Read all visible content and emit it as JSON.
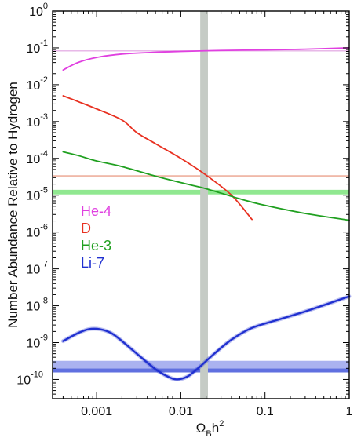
{
  "chart_data": {
    "type": "line",
    "title": "",
    "xlabel": {
      "base": "Ω",
      "sub": "B",
      "mid": "h",
      "sup": "2"
    },
    "ylabel": "Number Abundance Relative to Hydrogen",
    "x_scale": "log",
    "y_scale": "log",
    "xlim": [
      0.0003,
      1
    ],
    "ylim": [
      3e-11,
      1
    ],
    "x_ticks": [
      {
        "value": 0.001,
        "label": "0.001"
      },
      {
        "value": 0.01,
        "label": "0.01"
      },
      {
        "value": 0.1,
        "label": "0.1"
      },
      {
        "value": 1,
        "label": "1"
      }
    ],
    "y_ticks": [
      {
        "value": 1,
        "base": "10",
        "exp": "0"
      },
      {
        "value": 0.1,
        "base": "10",
        "exp": "-1"
      },
      {
        "value": 0.01,
        "base": "10",
        "exp": "-2"
      },
      {
        "value": 0.001,
        "base": "10",
        "exp": "-3"
      },
      {
        "value": 0.0001,
        "base": "10",
        "exp": "-4"
      },
      {
        "value": 1e-05,
        "base": "10",
        "exp": "-5"
      },
      {
        "value": 1e-06,
        "base": "10",
        "exp": "-6"
      },
      {
        "value": 1e-07,
        "base": "10",
        "exp": "-7"
      },
      {
        "value": 1e-08,
        "base": "10",
        "exp": "-8"
      },
      {
        "value": 1e-09,
        "base": "10",
        "exp": "-9"
      },
      {
        "value": 1e-10,
        "base": "10",
        "exp": "-10"
      }
    ],
    "legend_placement": "left, middle",
    "series": [
      {
        "name": "He-4",
        "color": "#e040e0",
        "points": [
          [
            0.0004,
            0.025
          ],
          [
            0.0006,
            0.04
          ],
          [
            0.001,
            0.055
          ],
          [
            0.002,
            0.068
          ],
          [
            0.005,
            0.076
          ],
          [
            0.01,
            0.08
          ],
          [
            0.03,
            0.085
          ],
          [
            0.1,
            0.088
          ],
          [
            0.3,
            0.092
          ],
          [
            1,
            0.1
          ]
        ]
      },
      {
        "name": "D",
        "color": "#e83020",
        "points": [
          [
            0.0004,
            0.005
          ],
          [
            0.0006,
            0.0035
          ],
          [
            0.001,
            0.0022
          ],
          [
            0.002,
            0.0011
          ],
          [
            0.003,
            0.0005
          ],
          [
            0.005,
            0.00025
          ],
          [
            0.01,
            0.0001
          ],
          [
            0.02,
            3.5e-05
          ],
          [
            0.04,
            1e-05
          ],
          [
            0.07,
            2.2e-06
          ]
        ]
      },
      {
        "name": "He-3",
        "color": "#20a020",
        "points": [
          [
            0.0004,
            0.00015
          ],
          [
            0.0006,
            0.00012
          ],
          [
            0.001,
            8.5e-05
          ],
          [
            0.002,
            6e-05
          ],
          [
            0.005,
            3.3e-05
          ],
          [
            0.01,
            2.2e-05
          ],
          [
            0.02,
            1.5e-05
          ],
          [
            0.05,
            8e-06
          ],
          [
            0.1,
            5.3e-06
          ],
          [
            0.3,
            3.2e-06
          ],
          [
            1,
            2.1e-06
          ]
        ]
      },
      {
        "name": "Li-7",
        "color": "#2030d0",
        "points": [
          [
            0.0004,
            1.1e-09
          ],
          [
            0.0006,
            1.8e-09
          ],
          [
            0.0008,
            2.3e-09
          ],
          [
            0.0011,
            2.3e-09
          ],
          [
            0.0015,
            1.8e-09
          ],
          [
            0.002,
            1.1e-09
          ],
          [
            0.003,
            5e-10
          ],
          [
            0.005,
            1.9e-10
          ],
          [
            0.007,
            1.2e-10
          ],
          [
            0.009,
            1e-10
          ],
          [
            0.012,
            1.2e-10
          ],
          [
            0.016,
            2e-10
          ],
          [
            0.025,
            5e-10
          ],
          [
            0.04,
            1.2e-09
          ],
          [
            0.07,
            2.5e-09
          ],
          [
            0.15,
            4.3e-09
          ],
          [
            0.3,
            7e-09
          ],
          [
            0.6,
            1.2e-08
          ],
          [
            1,
            1.8e-08
          ]
        ]
      }
    ],
    "bands": [
      {
        "orientation": "horizontal",
        "range": [
          0.082,
          0.086
        ],
        "color": "#e8b8e8"
      },
      {
        "orientation": "horizontal",
        "range": [
          3.2e-05,
          3.5e-05
        ],
        "color": "#f0b8a8"
      },
      {
        "orientation": "horizontal",
        "range": [
          1.05e-05,
          1.4e-05
        ],
        "color": "#90e890"
      },
      {
        "orientation": "horizontal",
        "range": [
          1.55e-10,
          2e-10
        ],
        "color": "#6070e0"
      },
      {
        "orientation": "horizontal",
        "range": [
          2e-10,
          3.2e-10
        ],
        "color": "#aab2f0"
      },
      {
        "orientation": "vertical",
        "range": [
          0.017,
          0.021
        ],
        "color": "#c5cbc5"
      }
    ]
  }
}
